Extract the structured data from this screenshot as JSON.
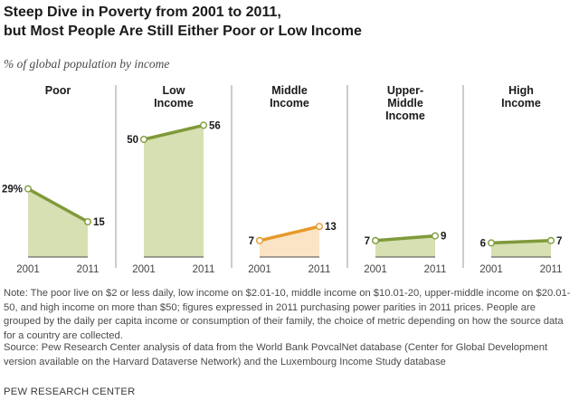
{
  "title": {
    "line1": "Steep Dive in Poverty from 2001 to 2011,",
    "line2": "but Most People Are Still Either Poor or Low Income"
  },
  "subtitle": "% of global population by income",
  "colors": {
    "green_line": "#7f9a3a",
    "green_fill": "#d6e0b2",
    "orange_line": "#e59a2a",
    "orange_fill": "#fbe4c6",
    "divider": "#9a9a9a",
    "text": "#1a1a1a"
  },
  "chart_data": {
    "type": "area",
    "title": "Steep Dive in Poverty from 2001 to 2011, but Most People Are Still Either Poor or Low Income",
    "ylabel": "% of global population by income",
    "x": [
      "2001",
      "2011"
    ],
    "ylim": [
      0,
      60
    ],
    "panels": [
      {
        "name": "Poor",
        "title_lines": [
          "Poor"
        ],
        "values": [
          29,
          15
        ],
        "labels": [
          "29%",
          "15"
        ],
        "color": "green"
      },
      {
        "name": "Low Income",
        "title_lines": [
          "Low",
          "Income"
        ],
        "values": [
          50,
          56
        ],
        "labels": [
          "50",
          "56"
        ],
        "color": "green"
      },
      {
        "name": "Middle Income",
        "title_lines": [
          "Middle",
          "Income"
        ],
        "values": [
          7,
          13
        ],
        "labels": [
          "7",
          "13"
        ],
        "color": "orange"
      },
      {
        "name": "Upper-Middle Income",
        "title_lines": [
          "Upper-",
          "Middle",
          "Income"
        ],
        "values": [
          7,
          9
        ],
        "labels": [
          "7",
          "9"
        ],
        "color": "green"
      },
      {
        "name": "High Income",
        "title_lines": [
          "High",
          "Income"
        ],
        "values": [
          6,
          7
        ],
        "labels": [
          "6",
          "7"
        ],
        "color": "green"
      }
    ]
  },
  "note": "Note: The poor live on $2 or less daily, low income on $2.01-10, middle income on $10.01-20, upper-middle income on $20.01-50, and high income on more than $50; figures expressed in 2011 purchasing power parities in 2011 prices. People are grouped by the daily per capita income or consumption of their family, the choice of metric depending on how the source data for a country are collected.",
  "source": "Source: Pew Research Center analysis of data from the World Bank PovcalNet database (Center for Global Development version available on the Harvard Dataverse Network) and the Luxembourg Income Study database",
  "brand": "PEW RESEARCH CENTER"
}
